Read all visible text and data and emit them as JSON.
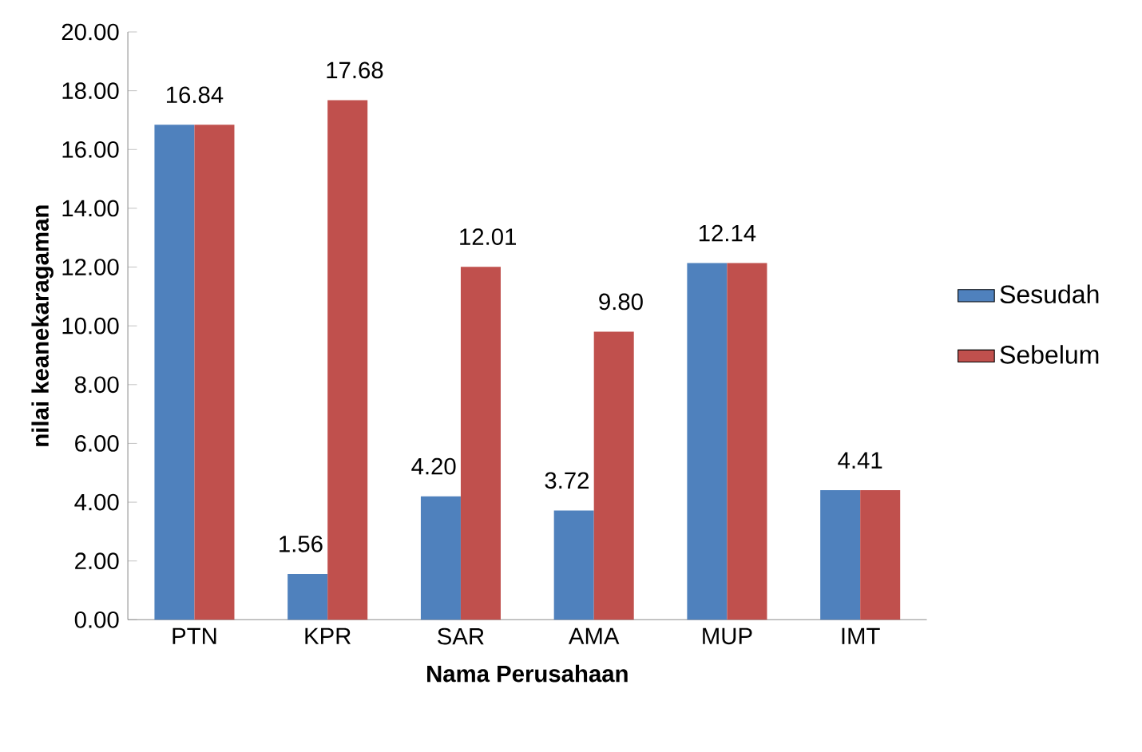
{
  "chart_data": {
    "type": "bar",
    "xlabel": "Nama Perusahaan",
    "ylabel": "nilai keanekaragaman",
    "categories": [
      "PTN",
      "KPR",
      "SAR",
      "AMA",
      "MUP",
      "IMT"
    ],
    "series": [
      {
        "name": "Sesudah",
        "color": "#4f81bd",
        "values": [
          16.84,
          1.56,
          4.2,
          3.72,
          12.14,
          4.41
        ],
        "value_labels": [
          "16.84",
          "1.56",
          "4.20",
          "3.72",
          "12.14",
          "4.41"
        ]
      },
      {
        "name": "Sebelum",
        "color": "#c0504d",
        "values": [
          16.84,
          17.68,
          12.01,
          9.8,
          12.14,
          4.41
        ],
        "value_labels": [
          null,
          "17.68",
          "12.01",
          "9.80",
          null,
          null
        ]
      }
    ],
    "ylim": [
      0,
      20
    ],
    "yticks": [
      {
        "value": 0,
        "label": "0.00"
      },
      {
        "value": 2,
        "label": "2.00"
      },
      {
        "value": 4,
        "label": "4.00"
      },
      {
        "value": 6,
        "label": "6.00"
      },
      {
        "value": 8,
        "label": "8.00"
      },
      {
        "value": 10,
        "label": "10.00"
      },
      {
        "value": 12,
        "label": "12.00"
      },
      {
        "value": 14,
        "label": "14.00"
      },
      {
        "value": 16,
        "label": "16.00"
      },
      {
        "value": 18,
        "label": "18.00"
      },
      {
        "value": 20,
        "label": "20.00"
      }
    ],
    "grid": false,
    "legend": "right"
  }
}
